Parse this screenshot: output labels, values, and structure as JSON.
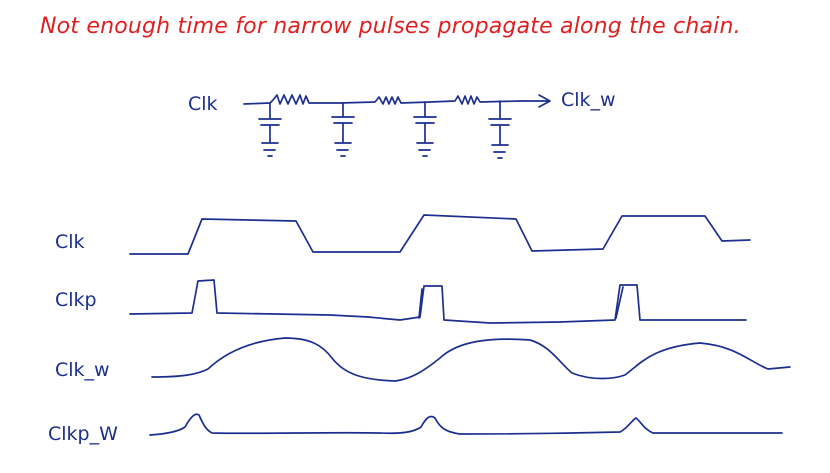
{
  "title": {
    "text": "Not enough time for narrow pulses propagate along the chain.",
    "color": "#e02020"
  },
  "ink_color": "#1c2f8f",
  "circuit": {
    "input_label": "Clk",
    "output_label": "Clk_w",
    "stages": 4
  },
  "waveforms": [
    {
      "label": "Clk"
    },
    {
      "label": "Clkp"
    },
    {
      "label": "Clk_w"
    },
    {
      "label": "Clkp_W"
    }
  ]
}
